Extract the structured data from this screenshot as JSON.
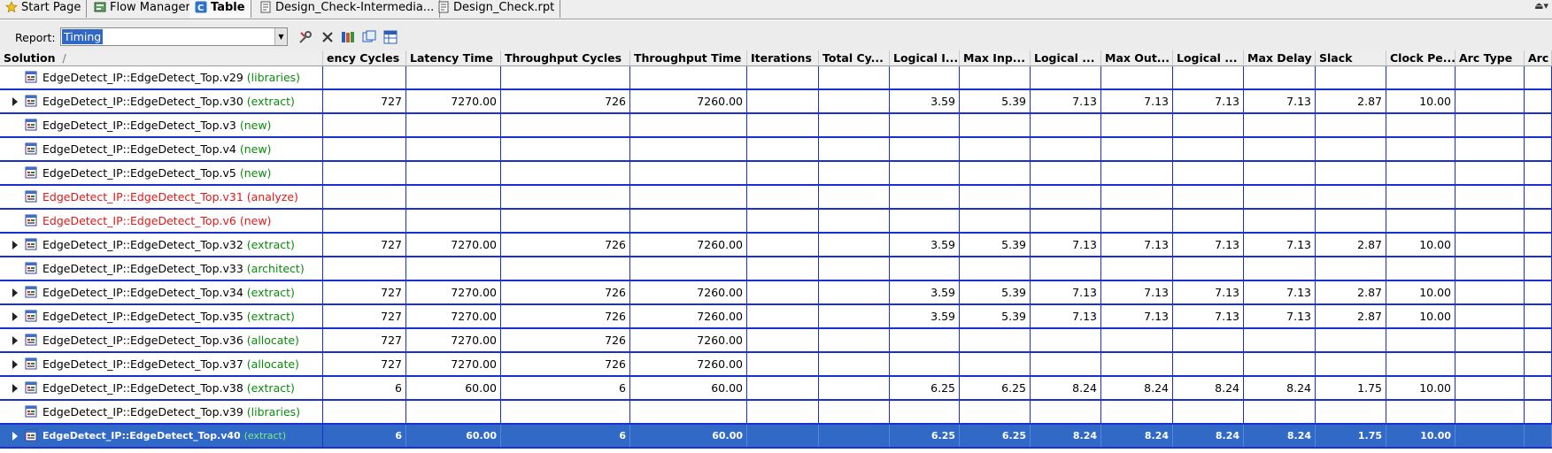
{
  "tabs": [
    {
      "label": "Start Page",
      "icon": "star-icon"
    },
    {
      "label": "Flow Manager",
      "icon": "flow-manager-icon"
    },
    {
      "label": "Table",
      "icon": "catapult-c-icon",
      "active": true
    },
    {
      "label": "Design_Check-Intermedia...",
      "icon": "report-icon"
    },
    {
      "label": "Design_Check.rpt",
      "icon": "report-icon"
    }
  ],
  "toolbar": {
    "report_label": "Report:",
    "report_value": "Timing",
    "buttons": [
      "wrench-icon",
      "close-icon",
      "books-icon",
      "copy-icon",
      "spreadsheet-icon"
    ]
  },
  "columns": [
    "Solution",
    "ency Cycles",
    "Latency Time",
    "Throughput Cycles",
    "Throughput Time",
    "Iterations",
    "Total Cy...",
    "Logical I...",
    "Max Inp...",
    "Logical ...",
    "Max Out...",
    "Logical ...",
    "Max Delay",
    "Slack",
    "Clock Pe...",
    "Arc Type",
    "Arc"
  ],
  "sort_indicator": "/",
  "rows": [
    {
      "name": "EdgeDetect_IP::EdgeDetect_Top.v29",
      "status": "(libraries)",
      "color": "green",
      "expand": false,
      "values": [
        "",
        "",
        "",
        "",
        "",
        "",
        "",
        "",
        "",
        "",
        "",
        "",
        "",
        "",
        "",
        ""
      ]
    },
    {
      "name": "EdgeDetect_IP::EdgeDetect_Top.v30",
      "status": "(extract)",
      "color": "green",
      "expand": true,
      "values": [
        "727",
        "7270.00",
        "726",
        "7260.00",
        "",
        "",
        "3.59",
        "5.39",
        "7.13",
        "7.13",
        "7.13",
        "7.13",
        "2.87",
        "10.00",
        "",
        ""
      ]
    },
    {
      "name": "EdgeDetect_IP::EdgeDetect_Top.v3",
      "status": "(new)",
      "color": "green",
      "expand": false,
      "values": [
        "",
        "",
        "",
        "",
        "",
        "",
        "",
        "",
        "",
        "",
        "",
        "",
        "",
        "",
        "",
        ""
      ]
    },
    {
      "name": "EdgeDetect_IP::EdgeDetect_Top.v4",
      "status": "(new)",
      "color": "green",
      "expand": false,
      "values": [
        "",
        "",
        "",
        "",
        "",
        "",
        "",
        "",
        "",
        "",
        "",
        "",
        "",
        "",
        "",
        ""
      ]
    },
    {
      "name": "EdgeDetect_IP::EdgeDetect_Top.v5",
      "status": "(new)",
      "color": "green",
      "expand": false,
      "values": [
        "",
        "",
        "",
        "",
        "",
        "",
        "",
        "",
        "",
        "",
        "",
        "",
        "",
        "",
        "",
        ""
      ]
    },
    {
      "name": "EdgeDetect_IP::EdgeDetect_Top.v31",
      "status": "(analyze)",
      "color": "red",
      "expand": false,
      "values": [
        "",
        "",
        "",
        "",
        "",
        "",
        "",
        "",
        "",
        "",
        "",
        "",
        "",
        "",
        "",
        ""
      ]
    },
    {
      "name": "EdgeDetect_IP::EdgeDetect_Top.v6",
      "status": "(new)",
      "color": "red",
      "expand": false,
      "values": [
        "",
        "",
        "",
        "",
        "",
        "",
        "",
        "",
        "",
        "",
        "",
        "",
        "",
        "",
        "",
        ""
      ]
    },
    {
      "name": "EdgeDetect_IP::EdgeDetect_Top.v32",
      "status": "(extract)",
      "color": "green",
      "expand": true,
      "values": [
        "727",
        "7270.00",
        "726",
        "7260.00",
        "",
        "",
        "3.59",
        "5.39",
        "7.13",
        "7.13",
        "7.13",
        "7.13",
        "2.87",
        "10.00",
        "",
        ""
      ]
    },
    {
      "name": "EdgeDetect_IP::EdgeDetect_Top.v33",
      "status": "(architect)",
      "color": "green",
      "expand": false,
      "values": [
        "",
        "",
        "",
        "",
        "",
        "",
        "",
        "",
        "",
        "",
        "",
        "",
        "",
        "",
        "",
        ""
      ]
    },
    {
      "name": "EdgeDetect_IP::EdgeDetect_Top.v34",
      "status": "(extract)",
      "color": "green",
      "expand": true,
      "values": [
        "727",
        "7270.00",
        "726",
        "7260.00",
        "",
        "",
        "3.59",
        "5.39",
        "7.13",
        "7.13",
        "7.13",
        "7.13",
        "2.87",
        "10.00",
        "",
        ""
      ]
    },
    {
      "name": "EdgeDetect_IP::EdgeDetect_Top.v35",
      "status": "(extract)",
      "color": "green",
      "expand": true,
      "values": [
        "727",
        "7270.00",
        "726",
        "7260.00",
        "",
        "",
        "3.59",
        "5.39",
        "7.13",
        "7.13",
        "7.13",
        "7.13",
        "2.87",
        "10.00",
        "",
        ""
      ]
    },
    {
      "name": "EdgeDetect_IP::EdgeDetect_Top.v36",
      "status": "(allocate)",
      "color": "green",
      "expand": true,
      "values": [
        "727",
        "7270.00",
        "726",
        "7260.00",
        "",
        "",
        "",
        "",
        "",
        "",
        "",
        "",
        "",
        "",
        "",
        ""
      ]
    },
    {
      "name": "EdgeDetect_IP::EdgeDetect_Top.v37",
      "status": "(allocate)",
      "color": "green",
      "expand": true,
      "values": [
        "727",
        "7270.00",
        "726",
        "7260.00",
        "",
        "",
        "",
        "",
        "",
        "",
        "",
        "",
        "",
        "",
        "",
        ""
      ]
    },
    {
      "name": "EdgeDetect_IP::EdgeDetect_Top.v38",
      "status": "(extract)",
      "color": "green",
      "expand": true,
      "values": [
        "6",
        "60.00",
        "6",
        "60.00",
        "",
        "",
        "6.25",
        "6.25",
        "8.24",
        "8.24",
        "8.24",
        "8.24",
        "1.75",
        "10.00",
        "",
        ""
      ]
    },
    {
      "name": "EdgeDetect_IP::EdgeDetect_Top.v39",
      "status": "(libraries)",
      "color": "green",
      "expand": false,
      "values": [
        "",
        "",
        "",
        "",
        "",
        "",
        "",
        "",
        "",
        "",
        "",
        "",
        "",
        "",
        "",
        ""
      ]
    },
    {
      "name": "EdgeDetect_IP::EdgeDetect_Top.v40",
      "status": "(extract)",
      "color": "green",
      "expand": true,
      "selected": true,
      "values": [
        "6",
        "60.00",
        "6",
        "60.00",
        "",
        "",
        "6.25",
        "6.25",
        "8.24",
        "8.24",
        "8.24",
        "8.24",
        "1.75",
        "10.00",
        "",
        ""
      ]
    }
  ],
  "colors": {
    "grid_line": "#1c2fd0",
    "selection": "#3169c6",
    "status_green": "#0a8a0a",
    "status_red": "#e01818"
  }
}
